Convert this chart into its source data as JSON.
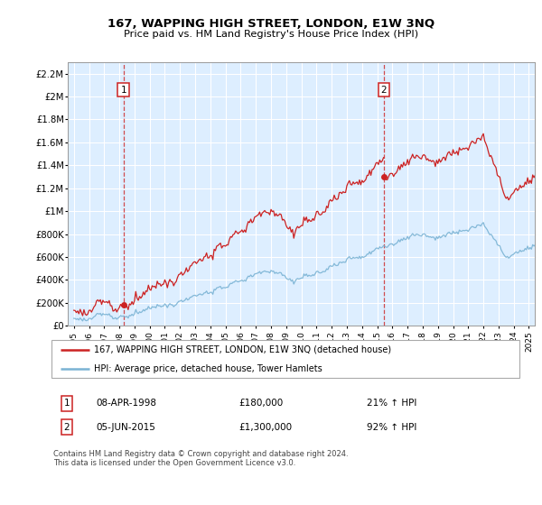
{
  "title": "167, WAPPING HIGH STREET, LONDON, E1W 3NQ",
  "subtitle": "Price paid vs. HM Land Registry's House Price Index (HPI)",
  "legend_line1": "167, WAPPING HIGH STREET, LONDON, E1W 3NQ (detached house)",
  "legend_line2": "HPI: Average price, detached house, Tower Hamlets",
  "annotation1_date": "08-APR-1998",
  "annotation1_price": "£180,000",
  "annotation1_hpi": "21% ↑ HPI",
  "annotation2_date": "05-JUN-2015",
  "annotation2_price": "£1,300,000",
  "annotation2_hpi": "92% ↑ HPI",
  "footnote": "Contains HM Land Registry data © Crown copyright and database right 2024.\nThis data is licensed under the Open Government Licence v3.0.",
  "sale1_x": 1998.27,
  "sale1_y": 180000,
  "sale2_x": 2015.43,
  "sale2_y": 1300000,
  "hpi_color": "#7ab3d4",
  "price_color": "#cc2222",
  "dashed_color": "#cc2222",
  "bg_color": "#ddeeff",
  "ylim_max": 2300000,
  "yticks": [
    0,
    200000,
    400000,
    600000,
    800000,
    1000000,
    1200000,
    1400000,
    1600000,
    1800000,
    2000000,
    2200000
  ],
  "ytick_labels": [
    "£0",
    "£200K",
    "£400K",
    "£600K",
    "£800K",
    "£1M",
    "£1.2M",
    "£1.4M",
    "£1.6M",
    "£1.8M",
    "£2M",
    "£2.2M"
  ],
  "xtick_years": [
    1995,
    1996,
    1997,
    1998,
    1999,
    2000,
    2001,
    2002,
    2003,
    2004,
    2005,
    2006,
    2007,
    2008,
    2009,
    2010,
    2011,
    2012,
    2013,
    2014,
    2015,
    2016,
    2017,
    2018,
    2019,
    2020,
    2021,
    2022,
    2023,
    2024,
    2025
  ]
}
